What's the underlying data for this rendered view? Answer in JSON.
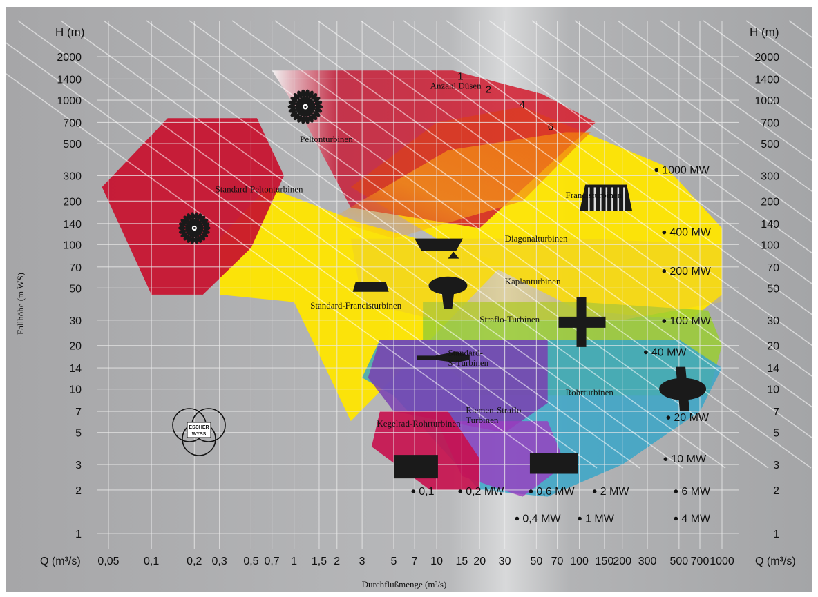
{
  "chart_data": {
    "type": "area",
    "title": "",
    "xlabel": "Durchflußmenge (m³/s)",
    "ylabel": "Fallhöhe (m WS)",
    "x_axis_label_short": "Q (m³/s)",
    "y_axis_label_short": "H (m)",
    "x_scale": "log",
    "y_scale": "log",
    "xlim": [
      0.03,
      1100
    ],
    "ylim": [
      0.85,
      2600
    ],
    "x_ticks": [
      {
        "v": 0.05,
        "t": "0,05"
      },
      {
        "v": 0.1,
        "t": "0,1"
      },
      {
        "v": 0.2,
        "t": "0,2"
      },
      {
        "v": 0.3,
        "t": "0,3"
      },
      {
        "v": 0.5,
        "t": "0,5"
      },
      {
        "v": 0.7,
        "t": "0,7"
      },
      {
        "v": 1,
        "t": "1"
      },
      {
        "v": 1.5,
        "t": "1,5"
      },
      {
        "v": 2,
        "t": "2"
      },
      {
        "v": 3,
        "t": "3"
      },
      {
        "v": 5,
        "t": "5"
      },
      {
        "v": 7,
        "t": "7"
      },
      {
        "v": 10,
        "t": "10"
      },
      {
        "v": 15,
        "t": "15"
      },
      {
        "v": 20,
        "t": "20"
      },
      {
        "v": 30,
        "t": "30"
      },
      {
        "v": 50,
        "t": "50"
      },
      {
        "v": 70,
        "t": "70"
      },
      {
        "v": 100,
        "t": "100"
      },
      {
        "v": 150,
        "t": "150"
      },
      {
        "v": 200,
        "t": "200"
      },
      {
        "v": 300,
        "t": "300"
      },
      {
        "v": 500,
        "t": "500"
      },
      {
        "v": 700,
        "t": "700"
      },
      {
        "v": 1000,
        "t": "1000"
      }
    ],
    "y_ticks": [
      {
        "v": 1,
        "t": "1"
      },
      {
        "v": 2,
        "t": "2"
      },
      {
        "v": 3,
        "t": "3"
      },
      {
        "v": 5,
        "t": "5"
      },
      {
        "v": 7,
        "t": "7"
      },
      {
        "v": 10,
        "t": "10"
      },
      {
        "v": 14,
        "t": "14"
      },
      {
        "v": 20,
        "t": "20"
      },
      {
        "v": 30,
        "t": "30"
      },
      {
        "v": 50,
        "t": "50"
      },
      {
        "v": 70,
        "t": "70"
      },
      {
        "v": 100,
        "t": "100"
      },
      {
        "v": 140,
        "t": "140"
      },
      {
        "v": 200,
        "t": "200"
      },
      {
        "v": 300,
        "t": "300"
      },
      {
        "v": 500,
        "t": "500"
      },
      {
        "v": 700,
        "t": "700"
      },
      {
        "v": 1000,
        "t": "1000"
      },
      {
        "v": 1400,
        "t": "1400"
      },
      {
        "v": 2000,
        "t": "2000"
      }
    ],
    "regions": [
      {
        "name": "Standard-Peltonturbinen",
        "color": "#c8102e",
        "opacity": 0.92,
        "polygon": [
          [
            0.045,
            250
          ],
          [
            0.13,
            750
          ],
          [
            0.55,
            750
          ],
          [
            0.85,
            300
          ],
          [
            0.5,
            95
          ],
          [
            0.23,
            45
          ],
          [
            0.1,
            45
          ]
        ]
      },
      {
        "name": "Peltonturbinen",
        "color": "#c8102e",
        "opacity": 0.92,
        "polygon": [
          [
            0.7,
            1600
          ],
          [
            13,
            1600
          ],
          [
            55,
            1100
          ],
          [
            130,
            700
          ],
          [
            20,
            130
          ],
          [
            2.5,
            180
          ],
          [
            1.2,
            700
          ]
        ]
      },
      {
        "name": "Francisturbinen",
        "color": "#ffe600",
        "opacity": 0.95,
        "polygon": [
          [
            10,
            700
          ],
          [
            40,
            900
          ],
          [
            400,
            350
          ],
          [
            1000,
            130
          ],
          [
            1000,
            45
          ],
          [
            600,
            30
          ],
          [
            100,
            35
          ],
          [
            10,
            110
          ],
          [
            2.5,
            250
          ]
        ]
      },
      {
        "name": "Standard-Francisturbinen",
        "color": "#ffe600",
        "opacity": 0.95,
        "polygon": [
          [
            0.3,
            110
          ],
          [
            0.65,
            250
          ],
          [
            3,
            140
          ],
          [
            30,
            75
          ],
          [
            5,
            12
          ],
          [
            2.5,
            6
          ],
          [
            1,
            40
          ],
          [
            0.3,
            45
          ]
        ]
      },
      {
        "name": "Straflo-Turbinen",
        "color": "#9acd32",
        "opacity": 0.85,
        "polygon": [
          [
            8,
            40
          ],
          [
            100,
            40
          ],
          [
            800,
            35
          ],
          [
            1000,
            20
          ],
          [
            800,
            9
          ],
          [
            20,
            9
          ],
          [
            8,
            20
          ]
        ]
      },
      {
        "name": "Rohrturbinen",
        "color": "#3aa6c8",
        "opacity": 0.85,
        "polygon": [
          [
            4,
            22
          ],
          [
            500,
            22
          ],
          [
            1000,
            14
          ],
          [
            700,
            7
          ],
          [
            200,
            3
          ],
          [
            60,
            1.8
          ],
          [
            20,
            2
          ],
          [
            5,
            9
          ],
          [
            3,
            12
          ]
        ]
      },
      {
        "name": "Standard-S-Turbinen",
        "color": "#7a3fb0",
        "opacity": 0.85,
        "polygon": [
          [
            4,
            22
          ],
          [
            60,
            22
          ],
          [
            60,
            8
          ],
          [
            30,
            5
          ],
          [
            5,
            7
          ],
          [
            3.3,
            12
          ]
        ]
      },
      {
        "name": "Riemen-Straflo-Turbinen",
        "color": "#9b3cbf",
        "opacity": 0.8,
        "polygon": [
          [
            10,
            6
          ],
          [
            60,
            6
          ],
          [
            80,
            3
          ],
          [
            40,
            1.8
          ],
          [
            15,
            2.5
          ]
        ]
      },
      {
        "name": "Kegelrad-Rohrturbinen",
        "color": "#c8104e",
        "opacity": 0.9,
        "polygon": [
          [
            4,
            7
          ],
          [
            12,
            7
          ],
          [
            20,
            3.3
          ],
          [
            20,
            2
          ],
          [
            9,
            2
          ],
          [
            3.5,
            4
          ]
        ]
      }
    ],
    "nozzle_labels": {
      "title": "Anzahl Düsen",
      "values": [
        "1",
        "2",
        "4",
        "6"
      ]
    },
    "region_labels": [
      {
        "text": "Standard-Peltonturbinen",
        "x": 0.28,
        "y": 230
      },
      {
        "text": "Peltonturbinen",
        "x": 1.1,
        "y": 510
      },
      {
        "text": "Anzahl Düsen",
        "x": 9,
        "y": 1200
      },
      {
        "text": "Francisturbinen",
        "x": 80,
        "y": 210
      },
      {
        "text": "Diagonalturbinen",
        "x": 30,
        "y": 105
      },
      {
        "text": "Kaplanturbinen",
        "x": 30,
        "y": 53
      },
      {
        "text": "Standard-Francisturbinen",
        "x": 1.3,
        "y": 36
      },
      {
        "text": "Straflo-Turbinen",
        "x": 20,
        "y": 29
      },
      {
        "text": "Standard-",
        "x": 12,
        "y": 17
      },
      {
        "text": "S-Turbinen",
        "x": 12,
        "y": 14.5
      },
      {
        "text": "Rohrturbinen",
        "x": 80,
        "y": 9
      },
      {
        "text": "Riemen-Straflo-",
        "x": 16,
        "y": 6.8
      },
      {
        "text": "Turbinen",
        "x": 16,
        "y": 5.8
      },
      {
        "text": "Kegelrad-Rohrturbinen",
        "x": 3.8,
        "y": 5.5
      }
    ],
    "power_labels": [
      {
        "text": "1000 MW",
        "x": 380,
        "y": 310
      },
      {
        "text": "400 MW",
        "x": 430,
        "y": 115
      },
      {
        "text": "200 MW",
        "x": 430,
        "y": 62
      },
      {
        "text": "100 MW",
        "x": 430,
        "y": 28
      },
      {
        "text": "40 MW",
        "x": 320,
        "y": 17
      },
      {
        "text": "20 MW",
        "x": 460,
        "y": 6
      },
      {
        "text": "10 MW",
        "x": 440,
        "y": 3.1
      },
      {
        "text": "6 MW",
        "x": 520,
        "y": 1.85
      },
      {
        "text": "4 MW",
        "x": 520,
        "y": 1.2
      },
      {
        "text": "2 MW",
        "x": 140,
        "y": 1.85
      },
      {
        "text": "1 MW",
        "x": 110,
        "y": 1.2
      },
      {
        "text": "0,6 MW",
        "x": 50,
        "y": 1.85
      },
      {
        "text": "0,4 MW",
        "x": 40,
        "y": 1.2
      },
      {
        "text": "0,2 MW",
        "x": 16,
        "y": 1.85
      },
      {
        "text": "0,1",
        "x": 7.5,
        "y": 1.85
      }
    ],
    "grid": true,
    "logo": "ESCHER WYSS"
  },
  "labels": {
    "h_left": "H (m)",
    "h_right": "H (m)",
    "q_left": "Q (m³/s)",
    "q_right": "Q (m³/s)",
    "ylabel": "Fallhöhe (m WS)",
    "xlabel": "Durchflußmenge (m³/s)"
  },
  "colors": {
    "background": "#a9a9aa",
    "grid": "#e9e9e9",
    "pelton": "#c8102e",
    "francis": "#ffe600",
    "straflo": "#9acd32",
    "rohr": "#3aa6c8",
    "sturb": "#7a3fb0",
    "kegel": "#c8104e",
    "icon": "#1a1a1a"
  }
}
